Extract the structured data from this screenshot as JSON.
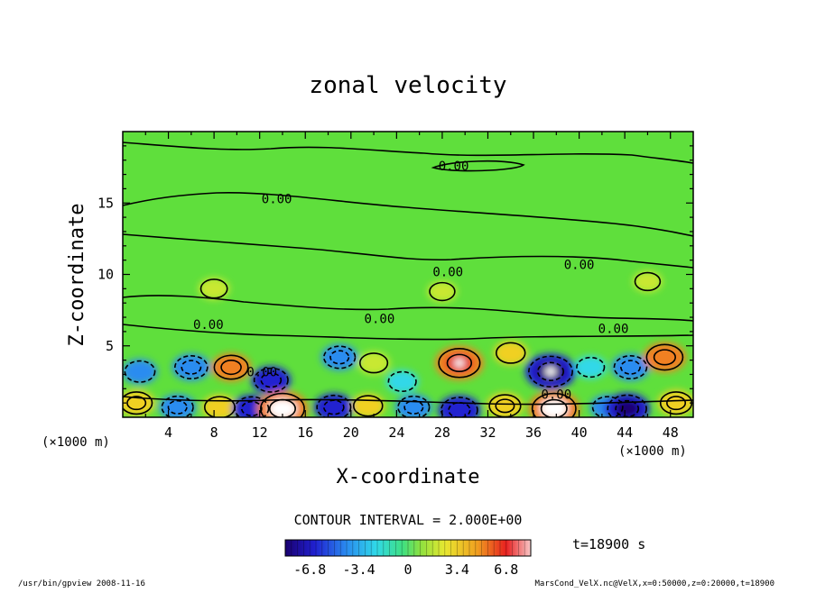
{
  "chart_data": {
    "type": "heatmap",
    "title": "zonal velocity",
    "xlabel": "X-coordinate",
    "ylabel": "Z-coordinate",
    "x_unit": "(×1000 m)",
    "y_unit": "(×1000 m)",
    "xlim": [
      0,
      50
    ],
    "ylim": [
      0,
      20
    ],
    "x_ticks": [
      4,
      8,
      12,
      16,
      20,
      24,
      28,
      32,
      36,
      40,
      44,
      48
    ],
    "y_ticks": [
      5,
      10,
      15
    ],
    "contour_labels": [
      "0.00",
      "0.00",
      "0.00",
      "0.00",
      "0.00",
      "0.00",
      "0.00",
      "0.00",
      "0.00"
    ],
    "contour_label_positions": [
      [
        29,
        17.6
      ],
      [
        13.5,
        15.3
      ],
      [
        28.5,
        10.2
      ],
      [
        40,
        10.7
      ],
      [
        7.5,
        6.5
      ],
      [
        22.5,
        6.9
      ],
      [
        43,
        6.2
      ],
      [
        12.2,
        3.2
      ],
      [
        38,
        1.6
      ]
    ],
    "contour_interval_text": "CONTOUR INTERVAL = 2.000E+00",
    "colorbar": {
      "min": -8.5,
      "max": 8.5,
      "ticks": [
        "-6.8",
        "-3.4",
        "0",
        "3.4",
        "6.8"
      ],
      "tick_values": [
        -6.8,
        -3.4,
        0,
        3.4,
        6.8
      ]
    },
    "time_label": "t=18900 s",
    "cells": [
      {
        "x": 1.5,
        "y": 3.2,
        "v": -3.5
      },
      {
        "x": 6,
        "y": 3.5,
        "v": -4.5
      },
      {
        "x": 9.5,
        "y": 3.5,
        "v": 5
      },
      {
        "x": 13,
        "y": 2.6,
        "v": -5
      },
      {
        "x": 19,
        "y": 4.2,
        "v": -4
      },
      {
        "x": 22,
        "y": 3.8,
        "v": 2.5
      },
      {
        "x": 24.5,
        "y": 2.5,
        "v": -2.5
      },
      {
        "x": 29.5,
        "y": 3.8,
        "v": 8
      },
      {
        "x": 34,
        "y": 4.5,
        "v": 3
      },
      {
        "x": 37.5,
        "y": 3.2,
        "v": -9
      },
      {
        "x": 41,
        "y": 3.5,
        "v": -2.5
      },
      {
        "x": 44.5,
        "y": 3.5,
        "v": -4.5
      },
      {
        "x": 47.5,
        "y": 4.2,
        "v": 6
      },
      {
        "x": 1.2,
        "y": 1,
        "v": 4
      },
      {
        "x": 4.8,
        "y": 0.7,
        "v": -4
      },
      {
        "x": 8.5,
        "y": 0.7,
        "v": 3.5
      },
      {
        "x": 11.3,
        "y": 0.6,
        "v": -5
      },
      {
        "x": 14,
        "y": 0.6,
        "v": 9
      },
      {
        "x": 18.5,
        "y": 0.7,
        "v": -5
      },
      {
        "x": 21.5,
        "y": 0.8,
        "v": 3
      },
      {
        "x": 25.5,
        "y": 0.7,
        "v": -4
      },
      {
        "x": 29.5,
        "y": 0.5,
        "v": -6
      },
      {
        "x": 33.5,
        "y": 0.8,
        "v": 4
      },
      {
        "x": 37.8,
        "y": 0.6,
        "v": 9
      },
      {
        "x": 42.5,
        "y": 0.7,
        "v": -3.5
      },
      {
        "x": 44.2,
        "y": 0.6,
        "v": -7
      },
      {
        "x": 48.5,
        "y": 1,
        "v": 4
      },
      {
        "x": 8,
        "y": 9,
        "v": 2
      },
      {
        "x": 28,
        "y": 8.8,
        "v": 1.5
      },
      {
        "x": 46,
        "y": 9.5,
        "v": 1.5
      }
    ]
  },
  "footer": {
    "left": "/usr/bin/gpview  2008-11-16",
    "right": "MarsCond_VelX.nc@VelX,x=0:50000,z=0:20000,t=18900"
  },
  "colors": {
    "background_field": "#5fdf3c",
    "contour": "#000000"
  }
}
